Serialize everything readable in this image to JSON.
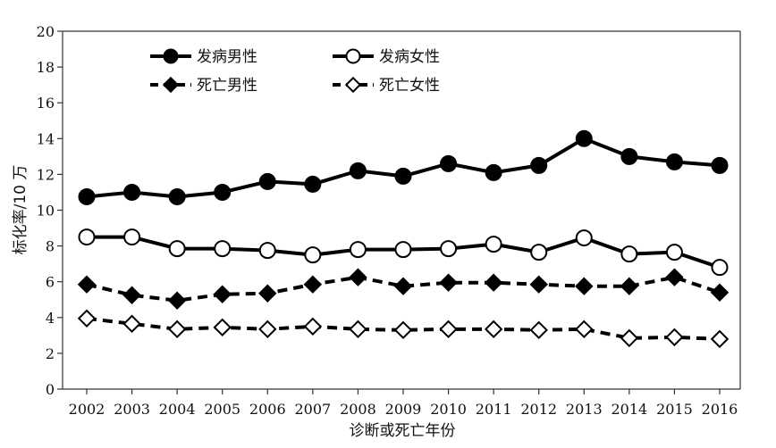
{
  "chart_data": {
    "type": "line",
    "title": "",
    "xlabel": "诊断或死亡年份",
    "ylabel": "标化率/10 万",
    "ylim": [
      0,
      20
    ],
    "yticks": [
      0,
      2,
      4,
      6,
      8,
      10,
      12,
      14,
      16,
      18,
      20
    ],
    "grid": false,
    "legend_position": "top",
    "x": [
      "2002",
      "2003",
      "2004",
      "2005",
      "2006",
      "2007",
      "2008",
      "2009",
      "2010",
      "2011",
      "2012",
      "2013",
      "2014",
      "2015",
      "2016"
    ],
    "series": [
      {
        "name": "发病男性",
        "line": "solid",
        "marker": "circle",
        "fill": "filled",
        "values": [
          10.75,
          11.0,
          10.75,
          11.0,
          11.6,
          11.45,
          12.2,
          11.9,
          12.6,
          12.1,
          12.5,
          14.0,
          13.0,
          12.7,
          12.5
        ]
      },
      {
        "name": "发病女性",
        "line": "solid",
        "marker": "circle",
        "fill": "open",
        "values": [
          8.5,
          8.5,
          7.85,
          7.85,
          7.75,
          7.5,
          7.8,
          7.8,
          7.85,
          8.1,
          7.65,
          8.45,
          7.55,
          7.65,
          6.8
        ]
      },
      {
        "name": "死亡男性",
        "line": "dashed",
        "marker": "diamond",
        "fill": "filled",
        "values": [
          5.85,
          5.25,
          4.95,
          5.3,
          5.35,
          5.85,
          6.25,
          5.75,
          5.95,
          5.95,
          5.85,
          5.75,
          5.75,
          6.25,
          5.4
        ]
      },
      {
        "name": "死亡女性",
        "line": "dashed",
        "marker": "diamond",
        "fill": "open",
        "values": [
          3.95,
          3.65,
          3.35,
          3.45,
          3.35,
          3.5,
          3.35,
          3.3,
          3.35,
          3.35,
          3.3,
          3.35,
          2.85,
          2.9,
          2.8
        ]
      }
    ]
  }
}
